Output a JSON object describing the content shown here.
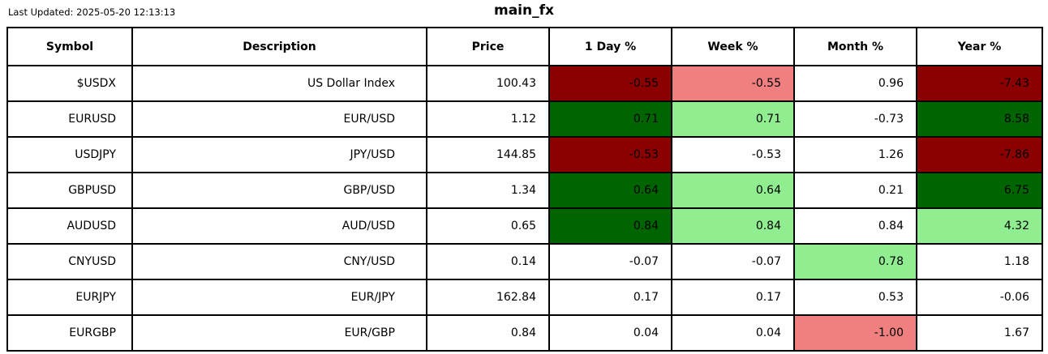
{
  "chart_data": {
    "type": "table",
    "title": "main_fx",
    "last_updated": "Last Updated: 2025-05-20 12:13:13",
    "columns": [
      "Symbol",
      "Description",
      "Price",
      "1 Day %",
      "Week %",
      "Month %",
      "Year %"
    ],
    "rows": [
      {
        "symbol": "$USDX",
        "description": "US Dollar Index",
        "price": "100.43",
        "day": {
          "value": "-0.55",
          "bg": "strong_negative"
        },
        "week": {
          "value": "-0.55",
          "bg": "weak_negative"
        },
        "month": {
          "value": "0.96",
          "bg": "neutral"
        },
        "year": {
          "value": "-7.43",
          "bg": "strong_negative"
        }
      },
      {
        "symbol": "EURUSD",
        "description": "EUR/USD",
        "price": "1.12",
        "day": {
          "value": "0.71",
          "bg": "strong_positive"
        },
        "week": {
          "value": "0.71",
          "bg": "weak_positive"
        },
        "month": {
          "value": "-0.73",
          "bg": "neutral"
        },
        "year": {
          "value": "8.58",
          "bg": "strong_positive"
        }
      },
      {
        "symbol": "USDJPY",
        "description": "JPY/USD",
        "price": "144.85",
        "day": {
          "value": "-0.53",
          "bg": "strong_negative"
        },
        "week": {
          "value": "-0.53",
          "bg": "neutral"
        },
        "month": {
          "value": "1.26",
          "bg": "neutral"
        },
        "year": {
          "value": "-7.86",
          "bg": "strong_negative"
        }
      },
      {
        "symbol": "GBPUSD",
        "description": "GBP/USD",
        "price": "1.34",
        "day": {
          "value": "0.64",
          "bg": "strong_positive"
        },
        "week": {
          "value": "0.64",
          "bg": "weak_positive"
        },
        "month": {
          "value": "0.21",
          "bg": "neutral"
        },
        "year": {
          "value": "6.75",
          "bg": "strong_positive"
        }
      },
      {
        "symbol": "AUDUSD",
        "description": "AUD/USD",
        "price": "0.65",
        "day": {
          "value": "0.84",
          "bg": "strong_positive"
        },
        "week": {
          "value": "0.84",
          "bg": "weak_positive"
        },
        "month": {
          "value": "0.84",
          "bg": "neutral"
        },
        "year": {
          "value": "4.32",
          "bg": "weak_positive"
        }
      },
      {
        "symbol": "CNYUSD",
        "description": "CNY/USD",
        "price": "0.14",
        "day": {
          "value": "-0.07",
          "bg": "neutral"
        },
        "week": {
          "value": "-0.07",
          "bg": "neutral"
        },
        "month": {
          "value": "0.78",
          "bg": "weak_positive"
        },
        "year": {
          "value": "1.18",
          "bg": "neutral"
        }
      },
      {
        "symbol": "EURJPY",
        "description": "EUR/JPY",
        "price": "162.84",
        "day": {
          "value": "0.17",
          "bg": "neutral"
        },
        "week": {
          "value": "0.17",
          "bg": "neutral"
        },
        "month": {
          "value": "0.53",
          "bg": "neutral"
        },
        "year": {
          "value": "-0.06",
          "bg": "neutral"
        }
      },
      {
        "symbol": "EURGBP",
        "description": "EUR/GBP",
        "price": "0.84",
        "day": {
          "value": "0.04",
          "bg": "neutral"
        },
        "week": {
          "value": "0.04",
          "bg": "neutral"
        },
        "month": {
          "value": "-1.00",
          "bg": "weak_negative"
        },
        "year": {
          "value": "1.67",
          "bg": "neutral"
        }
      }
    ],
    "cell_colors": {
      "strong_negative": "#8B0000",
      "weak_negative": "#F08080",
      "neutral": "#FFFFFF",
      "strong_positive": "#006400",
      "weak_positive": "#90EE90"
    },
    "layout": {
      "legend": "none",
      "grid": "full-borders",
      "value_alignment": "right",
      "header_alignment": "center"
    }
  }
}
